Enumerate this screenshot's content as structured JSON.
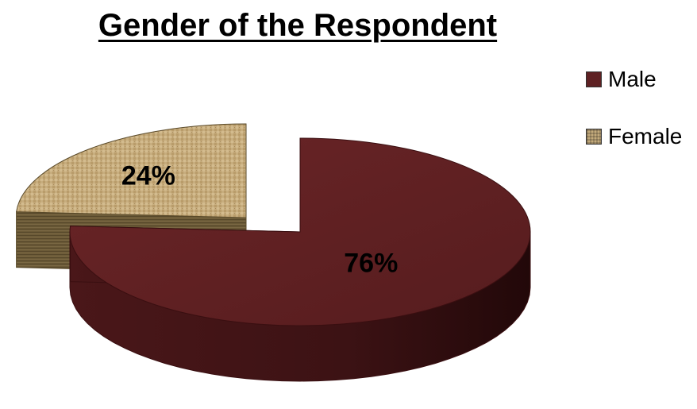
{
  "chart_data": {
    "type": "pie",
    "title": "Gender of the Respondent",
    "categories": [
      "Male",
      "Female"
    ],
    "values": [
      76,
      24
    ],
    "data_labels": [
      "76%",
      "24%"
    ],
    "legend_position": "right",
    "colors": [
      "#5e2123",
      "#c4ab7c"
    ],
    "style": "3d-exploded"
  }
}
